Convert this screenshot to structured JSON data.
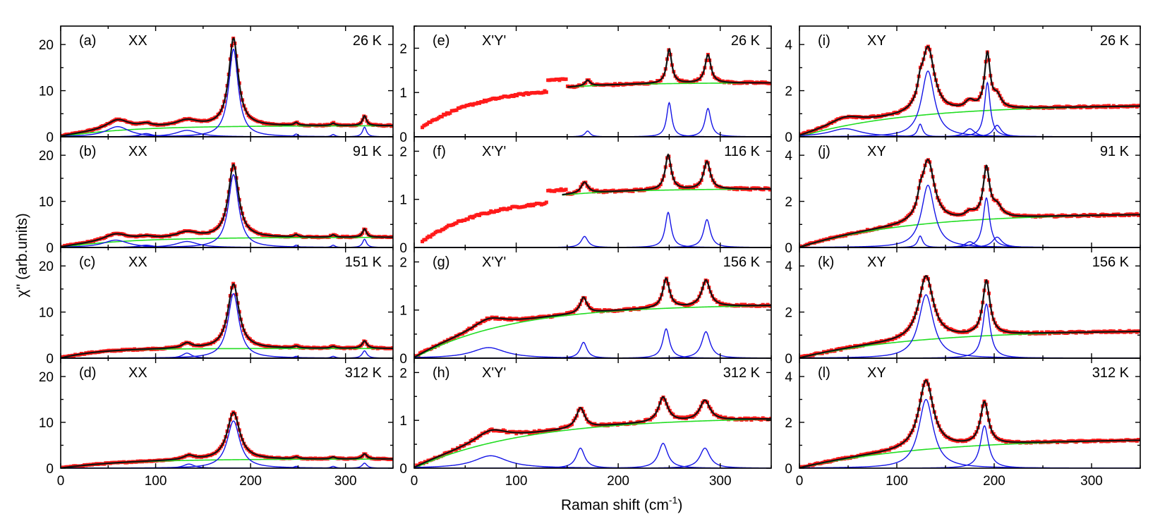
{
  "figure": {
    "ylabel": "χ'' (arb.units)",
    "xlabel_main": "Raman shift (cm",
    "xlabel_sup": "-1",
    "xlabel_close": ")"
  },
  "colors": {
    "data": "#ff1a1a",
    "fit": "#111111",
    "background": "#22dd22",
    "modes": "#1515e6"
  },
  "chart_data": [
    {
      "id": "a",
      "label": "(a)",
      "pol": "XX",
      "temp": "26 K",
      "type": "line",
      "xlim": [
        0,
        350
      ],
      "ylim": [
        0,
        24
      ],
      "yticks": [
        0,
        10,
        20
      ],
      "xticks": [
        0,
        100,
        200,
        300
      ],
      "show_xticklabels": false,
      "background": {
        "type": "sat",
        "A": 2.4,
        "tau": 70
      },
      "modes": [
        {
          "x0": 60,
          "A": 2.2,
          "w": 15
        },
        {
          "x0": 90,
          "A": 0.7,
          "w": 8
        },
        {
          "x0": 133,
          "A": 1.4,
          "w": 14
        },
        {
          "x0": 182,
          "A": 19.0,
          "w": 6
        },
        {
          "x0": 248,
          "A": 0.6,
          "w": 2.5
        },
        {
          "x0": 287,
          "A": 0.5,
          "w": 2.5
        },
        {
          "x0": 320,
          "A": 2.1,
          "w": 2.5
        }
      ],
      "data_range": [
        0,
        350
      ],
      "noise": 0.25
    },
    {
      "id": "b",
      "label": "(b)",
      "pol": "XX",
      "temp": "91 K",
      "type": "line",
      "xlim": [
        0,
        350
      ],
      "ylim": [
        0,
        24
      ],
      "yticks": [
        0,
        10,
        20
      ],
      "xticks": [
        0,
        100,
        200,
        300
      ],
      "show_xticklabels": false,
      "background": {
        "type": "sat",
        "A": 2.2,
        "tau": 70
      },
      "modes": [
        {
          "x0": 58,
          "A": 1.6,
          "w": 16
        },
        {
          "x0": 90,
          "A": 0.5,
          "w": 10
        },
        {
          "x0": 133,
          "A": 1.3,
          "w": 14
        },
        {
          "x0": 182,
          "A": 15.8,
          "w": 6.5
        },
        {
          "x0": 248,
          "A": 0.5,
          "w": 2.5
        },
        {
          "x0": 287,
          "A": 0.5,
          "w": 2.5
        },
        {
          "x0": 320,
          "A": 1.8,
          "w": 2.5
        }
      ],
      "data_range": [
        0,
        350
      ],
      "noise": 0.25
    },
    {
      "id": "c",
      "label": "(c)",
      "pol": "XX",
      "temp": "151 K",
      "type": "line",
      "xlim": [
        0,
        350
      ],
      "ylim": [
        0,
        24
      ],
      "yticks": [
        0,
        10,
        20
      ],
      "xticks": [
        0,
        100,
        200,
        300
      ],
      "show_xticklabels": false,
      "background": {
        "type": "sat",
        "A": 2.1,
        "tau": 40
      },
      "modes": [
        {
          "x0": 133,
          "A": 1.1,
          "w": 6
        },
        {
          "x0": 182,
          "A": 14.0,
          "w": 7
        },
        {
          "x0": 248,
          "A": 0.4,
          "w": 3
        },
        {
          "x0": 287,
          "A": 0.4,
          "w": 3
        },
        {
          "x0": 320,
          "A": 1.6,
          "w": 3
        }
      ],
      "data_range": [
        0,
        350
      ],
      "noise": 0.25
    },
    {
      "id": "d",
      "label": "(d)",
      "pol": "XX",
      "temp": "312 K",
      "type": "line",
      "xlim": [
        0,
        350
      ],
      "ylim": [
        0,
        24
      ],
      "yticks": [
        0,
        10,
        20
      ],
      "xticks": [
        0,
        100,
        200,
        300
      ],
      "show_xticklabels": true,
      "background": {
        "type": "sat",
        "A": 2.0,
        "tau": 70
      },
      "modes": [
        {
          "x0": 135,
          "A": 0.9,
          "w": 7
        },
        {
          "x0": 182,
          "A": 10.3,
          "w": 8
        },
        {
          "x0": 248,
          "A": 0.4,
          "w": 3
        },
        {
          "x0": 287,
          "A": 0.4,
          "w": 3
        },
        {
          "x0": 320,
          "A": 1.1,
          "w": 3
        }
      ],
      "data_range": [
        0,
        350
      ],
      "noise": 0.2
    },
    {
      "id": "e",
      "label": "(e)",
      "pol": "X'Y'",
      "temp": "26 K",
      "type": "line",
      "xlim": [
        0,
        350
      ],
      "ylim": [
        0,
        2.5
      ],
      "yticks": [
        0,
        1,
        2
      ],
      "xticks": [
        0,
        100,
        200,
        300
      ],
      "show_xticklabels": false,
      "background": {
        "type": "sat",
        "A": 1.22,
        "tau": 60
      },
      "modes": [
        {
          "x0": 170,
          "A": 0.13,
          "w": 3
        },
        {
          "x0": 250,
          "A": 0.77,
          "w": 3
        },
        {
          "x0": 288,
          "A": 0.64,
          "w": 3.5
        }
      ],
      "fit_range": [
        150,
        350
      ],
      "data_range": [
        8,
        350
      ],
      "noise": 0.04
    },
    {
      "id": "f",
      "label": "(f)",
      "pol": "X'Y'",
      "temp": "116 K",
      "type": "line",
      "xlim": [
        0,
        350
      ],
      "ylim": [
        0,
        2.3
      ],
      "yticks": [
        0,
        1,
        2
      ],
      "xticks": [
        0,
        100,
        200,
        300
      ],
      "show_xticklabels": false,
      "background": {
        "type": "sat",
        "A": 1.22,
        "tau": 65
      },
      "modes": [
        {
          "x0": 167,
          "A": 0.23,
          "w": 4
        },
        {
          "x0": 249,
          "A": 0.73,
          "w": 3.5
        },
        {
          "x0": 287,
          "A": 0.58,
          "w": 4
        }
      ],
      "fit_range": [
        145,
        350
      ],
      "data_range": [
        8,
        350
      ],
      "noise": 0.04
    },
    {
      "id": "g",
      "label": "(g)",
      "pol": "X'Y'",
      "temp": "156 K",
      "type": "line",
      "xlim": [
        0,
        350
      ],
      "ylim": [
        0,
        2.3
      ],
      "yticks": [
        0,
        1,
        2
      ],
      "xticks": [
        0,
        100,
        200,
        300
      ],
      "show_xticklabels": false,
      "background": {
        "type": "sat",
        "A": 1.12,
        "tau": 95
      },
      "modes": [
        {
          "x0": 73,
          "A": 0.22,
          "w": 20
        },
        {
          "x0": 166,
          "A": 0.33,
          "w": 4
        },
        {
          "x0": 247,
          "A": 0.61,
          "w": 4
        },
        {
          "x0": 286,
          "A": 0.55,
          "w": 5
        }
      ],
      "data_range": [
        0,
        350
      ],
      "noise": 0.04
    },
    {
      "id": "h",
      "label": "(h)",
      "pol": "X'Y'",
      "temp": "312 K",
      "type": "line",
      "xlim": [
        0,
        350
      ],
      "ylim": [
        0,
        2.3
      ],
      "yticks": [
        0,
        1,
        2
      ],
      "xticks": [
        0,
        100,
        200,
        300
      ],
      "show_xticklabels": true,
      "background": {
        "type": "sat",
        "A": 1.07,
        "tau": 110
      },
      "modes": [
        {
          "x0": 75,
          "A": 0.26,
          "w": 20
        },
        {
          "x0": 163,
          "A": 0.42,
          "w": 5
        },
        {
          "x0": 244,
          "A": 0.52,
          "w": 5.5
        },
        {
          "x0": 285,
          "A": 0.42,
          "w": 6
        }
      ],
      "data_range": [
        0,
        350
      ],
      "noise": 0.04
    },
    {
      "id": "i",
      "label": "(i)",
      "pol": "XY",
      "temp": "26 K",
      "type": "line",
      "xlim": [
        0,
        350
      ],
      "ylim": [
        0,
        4.8
      ],
      "yticks": [
        0,
        2,
        4
      ],
      "xticks": [
        0,
        100,
        200,
        300
      ],
      "show_xticklabels": false,
      "background": {
        "type": "sat",
        "A": 1.38,
        "tau": 110
      },
      "modes": [
        {
          "x0": 47,
          "A": 0.35,
          "w": 20
        },
        {
          "x0": 124,
          "A": 0.55,
          "w": 3
        },
        {
          "x0": 132,
          "A": 2.85,
          "w": 8
        },
        {
          "x0": 175,
          "A": 0.35,
          "w": 6
        },
        {
          "x0": 193,
          "A": 2.35,
          "w": 3.5
        },
        {
          "x0": 203,
          "A": 0.5,
          "w": 5
        }
      ],
      "data_range": [
        0,
        350
      ],
      "noise": 0.07
    },
    {
      "id": "j",
      "label": "(j)",
      "pol": "XY",
      "temp": "91 K",
      "type": "line",
      "xlim": [
        0,
        350
      ],
      "ylim": [
        0,
        4.8
      ],
      "yticks": [
        0,
        2,
        4
      ],
      "xticks": [
        0,
        100,
        200,
        300
      ],
      "show_xticklabels": false,
      "background": {
        "type": "sat",
        "A": 1.48,
        "tau": 110
      },
      "modes": [
        {
          "x0": 124,
          "A": 0.5,
          "w": 3
        },
        {
          "x0": 132,
          "A": 2.7,
          "w": 8
        },
        {
          "x0": 175,
          "A": 0.25,
          "w": 6
        },
        {
          "x0": 192,
          "A": 2.15,
          "w": 4
        },
        {
          "x0": 203,
          "A": 0.45,
          "w": 6
        }
      ],
      "data_range": [
        0,
        350
      ],
      "noise": 0.07
    },
    {
      "id": "k",
      "label": "(k)",
      "pol": "XY",
      "temp": "156 K",
      "type": "line",
      "xlim": [
        0,
        350
      ],
      "ylim": [
        0,
        4.8
      ],
      "yticks": [
        0,
        2,
        4
      ],
      "xticks": [
        0,
        100,
        200,
        300
      ],
      "show_xticklabels": false,
      "background": {
        "type": "sat",
        "A": 1.22,
        "tau": 120
      },
      "modes": [
        {
          "x0": 130,
          "A": 2.75,
          "w": 9
        },
        {
          "x0": 192,
          "A": 2.35,
          "w": 4.5
        }
      ],
      "data_range": [
        0,
        350
      ],
      "noise": 0.07
    },
    {
      "id": "l",
      "label": "(l)",
      "pol": "XY",
      "temp": "312 K",
      "type": "line",
      "xlim": [
        0,
        350
      ],
      "ylim": [
        0,
        4.8
      ],
      "yticks": [
        0,
        2,
        4
      ],
      "xticks": [
        0,
        100,
        200,
        300
      ],
      "show_xticklabels": true,
      "background": {
        "type": "sat",
        "A": 1.3,
        "tau": 130
      },
      "modes": [
        {
          "x0": 130,
          "A": 3.0,
          "w": 9
        },
        {
          "x0": 190,
          "A": 1.85,
          "w": 5
        }
      ],
      "data_range": [
        0,
        350
      ],
      "noise": 0.06
    }
  ]
}
